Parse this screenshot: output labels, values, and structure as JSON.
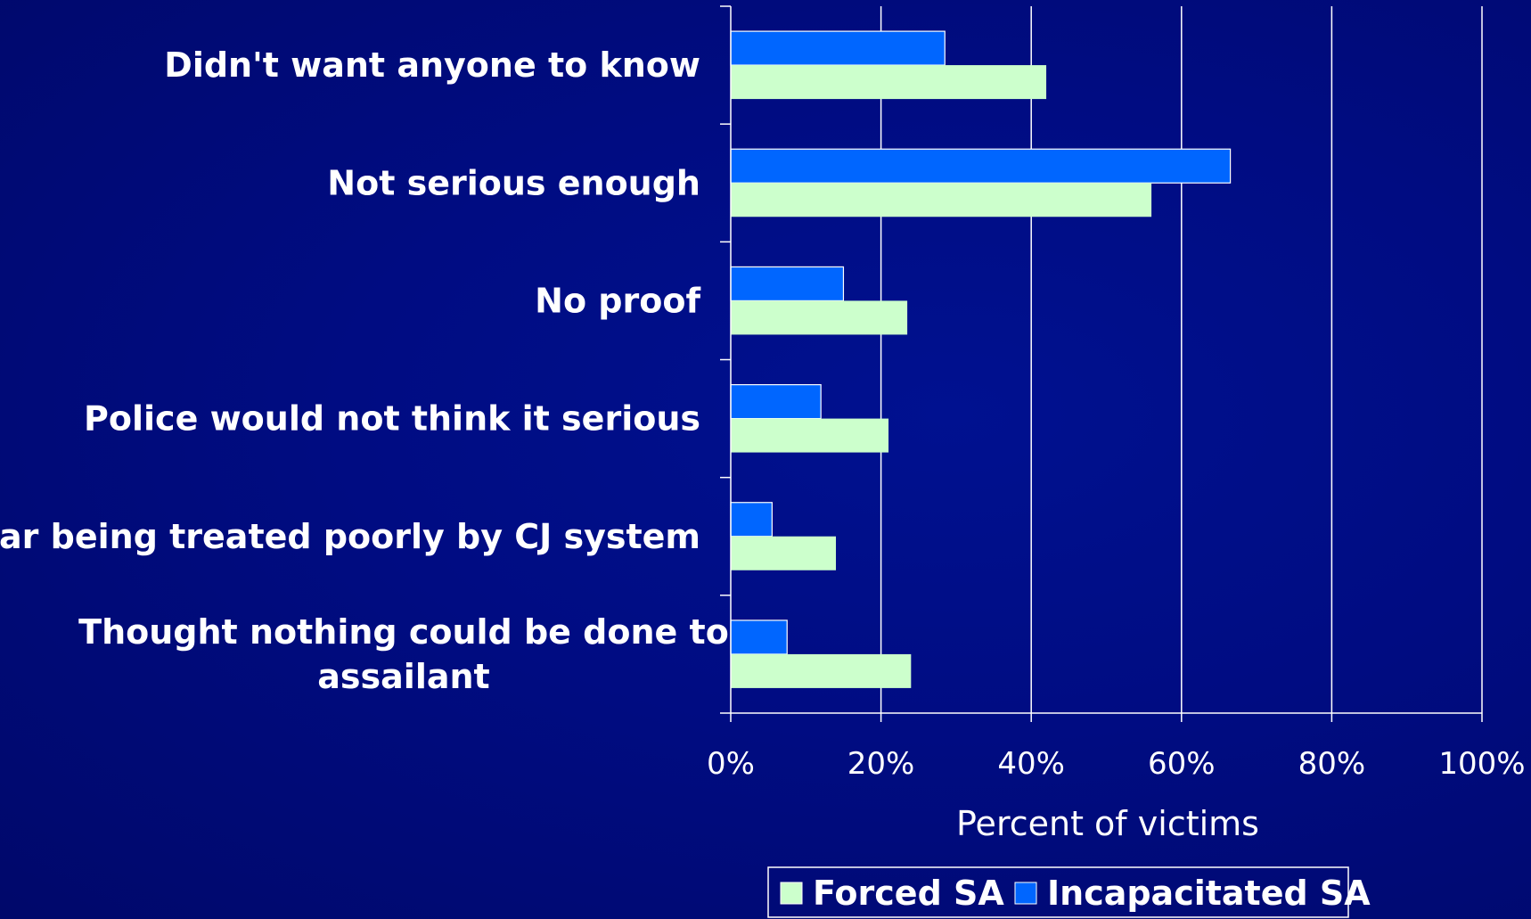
{
  "chart_data": {
    "type": "bar",
    "orientation": "horizontal",
    "categories": [
      "Didn't want anyone to know",
      "Not serious enough",
      "No proof",
      "Police would not think it serious",
      "Fear being treated poorly by CJ system",
      "Thought nothing could be done to assailant"
    ],
    "series": [
      {
        "name": "Forced SA",
        "color": "#ccffcc",
        "values": [
          42,
          56,
          23.5,
          21,
          14,
          24
        ]
      },
      {
        "name": "Incapacitated SA",
        "color": "#0066ff",
        "values": [
          28.5,
          66.5,
          15,
          12,
          5.5,
          7.5
        ]
      }
    ],
    "xlabel": "Percent of victims",
    "xlim": [
      0,
      100
    ],
    "ticks": [
      "0%",
      "20%",
      "40%",
      "60%",
      "80%",
      "100%"
    ],
    "grid": true,
    "legend_position": "bottom"
  },
  "colors": {
    "background": "#000c82",
    "gridline": "#ffffff",
    "text": "#ffffff"
  }
}
